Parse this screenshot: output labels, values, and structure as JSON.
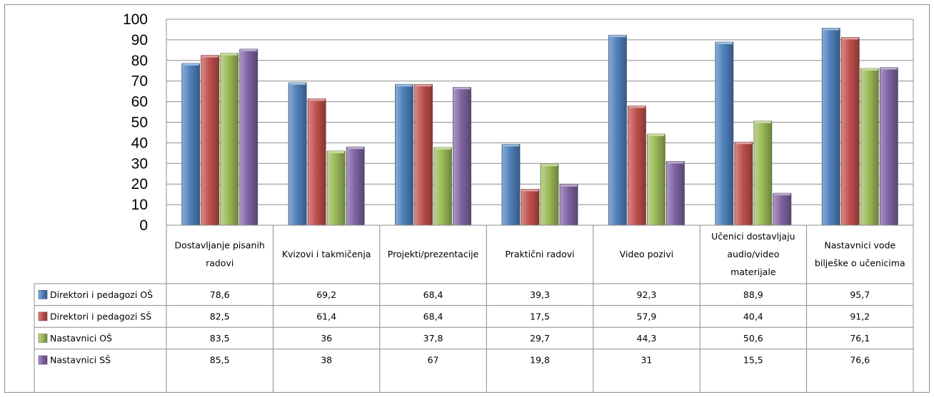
{
  "chart_data": {
    "type": "bar",
    "categories": [
      "Dostavljanje pisanih radovi",
      "Kvizovi i takmičenja",
      "Projekti/prezentacije",
      "Praktični radovi",
      "Video pozivi",
      "Učenici dostavljaju audio/video materijale",
      "Nastavnici vode bilješke o učenicima"
    ],
    "category_lines": [
      [
        "Dostavljanje pisanih",
        "radovi"
      ],
      [
        "Kvizovi i takmičenja"
      ],
      [
        "Projekti/prezentacije"
      ],
      [
        "Praktični radovi"
      ],
      [
        "Video pozivi"
      ],
      [
        "Učenici dostavljaju",
        "audio/video",
        "materijale"
      ],
      [
        "Nastavnici vode",
        "bilješke o učenicima"
      ]
    ],
    "series": [
      {
        "name": "Direktori i pedagozi OŠ",
        "color": "#4f81bd",
        "values": [
          78.6,
          69.2,
          68.4,
          39.3,
          92.3,
          88.9,
          95.7
        ],
        "labels": [
          "78,6",
          "69,2",
          "68,4",
          "39,3",
          "92,3",
          "88,9",
          "95,7"
        ]
      },
      {
        "name": "Direktori i pedagozi SŠ",
        "color": "#c0504d",
        "values": [
          82.5,
          61.4,
          68.4,
          17.5,
          57.9,
          40.4,
          91.2
        ],
        "labels": [
          "82,5",
          "61,4",
          "68,4",
          "17,5",
          "57,9",
          "40,4",
          "91,2"
        ]
      },
      {
        "name": "Nastavnici OŠ",
        "color": "#9bbb59",
        "values": [
          83.5,
          36,
          37.8,
          29.7,
          44.3,
          50.6,
          76.1
        ],
        "labels": [
          "83,5",
          "36",
          "37,8",
          "29,7",
          "44,3",
          "50,6",
          "76,1"
        ]
      },
      {
        "name": "Nastavnici SŠ",
        "color": "#8064a2",
        "values": [
          85.5,
          38,
          67,
          19.8,
          31,
          15.5,
          76.6
        ],
        "labels": [
          "85,5",
          "38",
          "67",
          "19,8",
          "31",
          "15,5",
          "76,6"
        ]
      }
    ],
    "ylim": [
      0,
      100
    ],
    "yticks": [
      0,
      10,
      20,
      30,
      40,
      50,
      60,
      70,
      80,
      90,
      100
    ],
    "grid": true,
    "legend": "data-table"
  }
}
